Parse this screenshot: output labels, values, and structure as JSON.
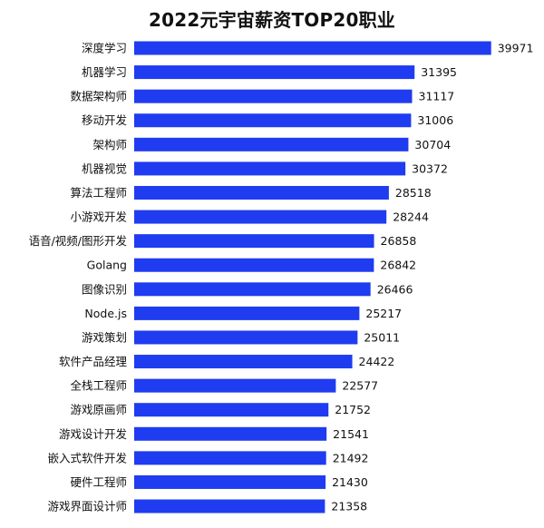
{
  "chart_data": {
    "type": "bar",
    "orientation": "horizontal",
    "title": "2022元宇宙薪资TOP20职业",
    "xlabel": "",
    "ylabel": "",
    "grid": false,
    "legend": "none",
    "bar_color": "#1f3cf0",
    "xlim": [
      0,
      40000
    ],
    "categories": [
      "深度学习",
      "机器学习",
      "数据架构师",
      "移动开发",
      "架构师",
      "机器视觉",
      "算法工程师",
      "小游戏开发",
      "语音/视频/图形开发",
      "Golang",
      "图像识别",
      "Node.js",
      "游戏策划",
      "软件产品经理",
      "全栈工程师",
      "游戏原画师",
      "游戏设计开发",
      "嵌入式软件开发",
      "硬件工程师",
      "游戏界面设计师"
    ],
    "values": [
      39971,
      31395,
      31117,
      31006,
      30704,
      30372,
      28518,
      28244,
      26858,
      26842,
      26466,
      25217,
      25011,
      24422,
      22577,
      21752,
      21541,
      21492,
      21430,
      21358
    ]
  }
}
